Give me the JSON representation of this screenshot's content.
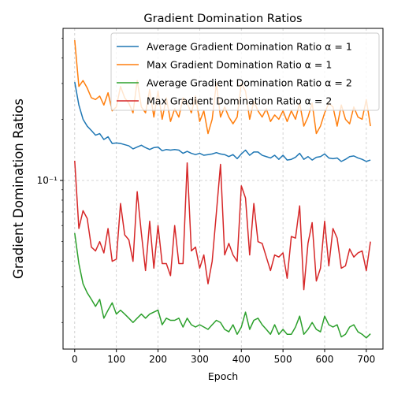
{
  "chart_data": {
    "type": "line",
    "title": "Gradient Domination Ratios",
    "xlabel": "Epoch",
    "ylabel": "Gradient Domination Ratios",
    "yscale": "log",
    "xlim": [
      -28,
      740
    ],
    "ylim": [
      0.0148,
      0.56
    ],
    "xticks": [
      0,
      100,
      200,
      300,
      400,
      500,
      600,
      700
    ],
    "yticks": [
      {
        "value": 0.1,
        "label": "10⁻¹"
      }
    ],
    "grid": true,
    "legend_position": "upper right",
    "x": [
      0,
      10,
      20,
      30,
      40,
      50,
      60,
      70,
      80,
      90,
      100,
      110,
      120,
      130,
      140,
      150,
      160,
      170,
      180,
      190,
      200,
      210,
      220,
      230,
      240,
      250,
      260,
      270,
      280,
      290,
      300,
      310,
      320,
      330,
      340,
      350,
      360,
      370,
      380,
      390,
      400,
      410,
      420,
      430,
      440,
      450,
      460,
      470,
      480,
      490,
      500,
      510,
      520,
      530,
      540,
      550,
      560,
      570,
      580,
      590,
      600,
      610,
      620,
      630,
      640,
      650,
      660,
      670,
      680,
      690,
      700,
      710
    ],
    "series": [
      {
        "name": "Average Gradient Domination Ratio α = 1",
        "color": "#1f77b4",
        "values": [
          0.305,
          0.235,
          0.2,
          0.185,
          0.176,
          0.167,
          0.17,
          0.159,
          0.164,
          0.152,
          0.153,
          0.152,
          0.15,
          0.148,
          0.143,
          0.146,
          0.149,
          0.145,
          0.142,
          0.145,
          0.146,
          0.14,
          0.142,
          0.141,
          0.142,
          0.141,
          0.136,
          0.139,
          0.136,
          0.134,
          0.136,
          0.133,
          0.134,
          0.135,
          0.137,
          0.135,
          0.134,
          0.131,
          0.134,
          0.128,
          0.135,
          0.141,
          0.133,
          0.138,
          0.138,
          0.133,
          0.131,
          0.129,
          0.133,
          0.127,
          0.133,
          0.126,
          0.127,
          0.13,
          0.136,
          0.127,
          0.131,
          0.126,
          0.13,
          0.131,
          0.135,
          0.129,
          0.128,
          0.129,
          0.124,
          0.127,
          0.131,
          0.132,
          0.129,
          0.127,
          0.124,
          0.126
        ]
      },
      {
        "name": "Max Gradient Domination Ratio α = 1",
        "color": "#ff7f0e",
        "values": [
          0.49,
          0.29,
          0.31,
          0.285,
          0.255,
          0.25,
          0.26,
          0.235,
          0.27,
          0.22,
          0.23,
          0.29,
          0.255,
          0.24,
          0.215,
          0.31,
          0.23,
          0.215,
          0.28,
          0.205,
          0.275,
          0.2,
          0.255,
          0.195,
          0.225,
          0.205,
          0.255,
          0.24,
          0.215,
          0.26,
          0.195,
          0.22,
          0.17,
          0.2,
          0.3,
          0.205,
          0.23,
          0.205,
          0.19,
          0.205,
          0.3,
          0.275,
          0.2,
          0.245,
          0.22,
          0.205,
          0.225,
          0.195,
          0.21,
          0.2,
          0.22,
          0.195,
          0.22,
          0.2,
          0.24,
          0.185,
          0.205,
          0.24,
          0.17,
          0.185,
          0.215,
          0.24,
          0.23,
          0.185,
          0.235,
          0.2,
          0.19,
          0.23,
          0.205,
          0.2,
          0.25,
          0.185
        ]
      },
      {
        "name": "Average Gradient Domination Ratio α = 2",
        "color": "#2ca02c",
        "values": [
          0.055,
          0.039,
          0.031,
          0.028,
          0.026,
          0.024,
          0.026,
          0.021,
          0.023,
          0.025,
          0.022,
          0.023,
          0.022,
          0.021,
          0.02,
          0.021,
          0.022,
          0.021,
          0.022,
          0.0225,
          0.023,
          0.0195,
          0.021,
          0.0205,
          0.0205,
          0.021,
          0.019,
          0.021,
          0.0195,
          0.019,
          0.0195,
          0.019,
          0.0185,
          0.0195,
          0.0205,
          0.02,
          0.0185,
          0.018,
          0.0195,
          0.0175,
          0.019,
          0.0225,
          0.0185,
          0.0205,
          0.021,
          0.0195,
          0.0185,
          0.0175,
          0.0195,
          0.0175,
          0.0185,
          0.0175,
          0.0175,
          0.019,
          0.0215,
          0.0175,
          0.0185,
          0.02,
          0.0185,
          0.018,
          0.0215,
          0.0195,
          0.019,
          0.0195,
          0.017,
          0.0175,
          0.019,
          0.0195,
          0.018,
          0.0175,
          0.0168,
          0.0176
        ]
      },
      {
        "name": "Max Gradient Domination Ratio α = 2",
        "color": "#d62728",
        "values": [
          0.125,
          0.058,
          0.071,
          0.065,
          0.047,
          0.045,
          0.05,
          0.044,
          0.058,
          0.04,
          0.041,
          0.077,
          0.054,
          0.051,
          0.04,
          0.088,
          0.055,
          0.036,
          0.063,
          0.037,
          0.06,
          0.039,
          0.039,
          0.034,
          0.06,
          0.039,
          0.039,
          0.122,
          0.045,
          0.047,
          0.037,
          0.043,
          0.031,
          0.04,
          0.069,
          0.12,
          0.043,
          0.049,
          0.043,
          0.04,
          0.094,
          0.082,
          0.043,
          0.077,
          0.05,
          0.049,
          0.042,
          0.036,
          0.043,
          0.042,
          0.044,
          0.033,
          0.053,
          0.052,
          0.075,
          0.029,
          0.049,
          0.062,
          0.032,
          0.037,
          0.063,
          0.038,
          0.058,
          0.052,
          0.037,
          0.038,
          0.046,
          0.042,
          0.044,
          0.045,
          0.036,
          0.05
        ]
      }
    ]
  }
}
